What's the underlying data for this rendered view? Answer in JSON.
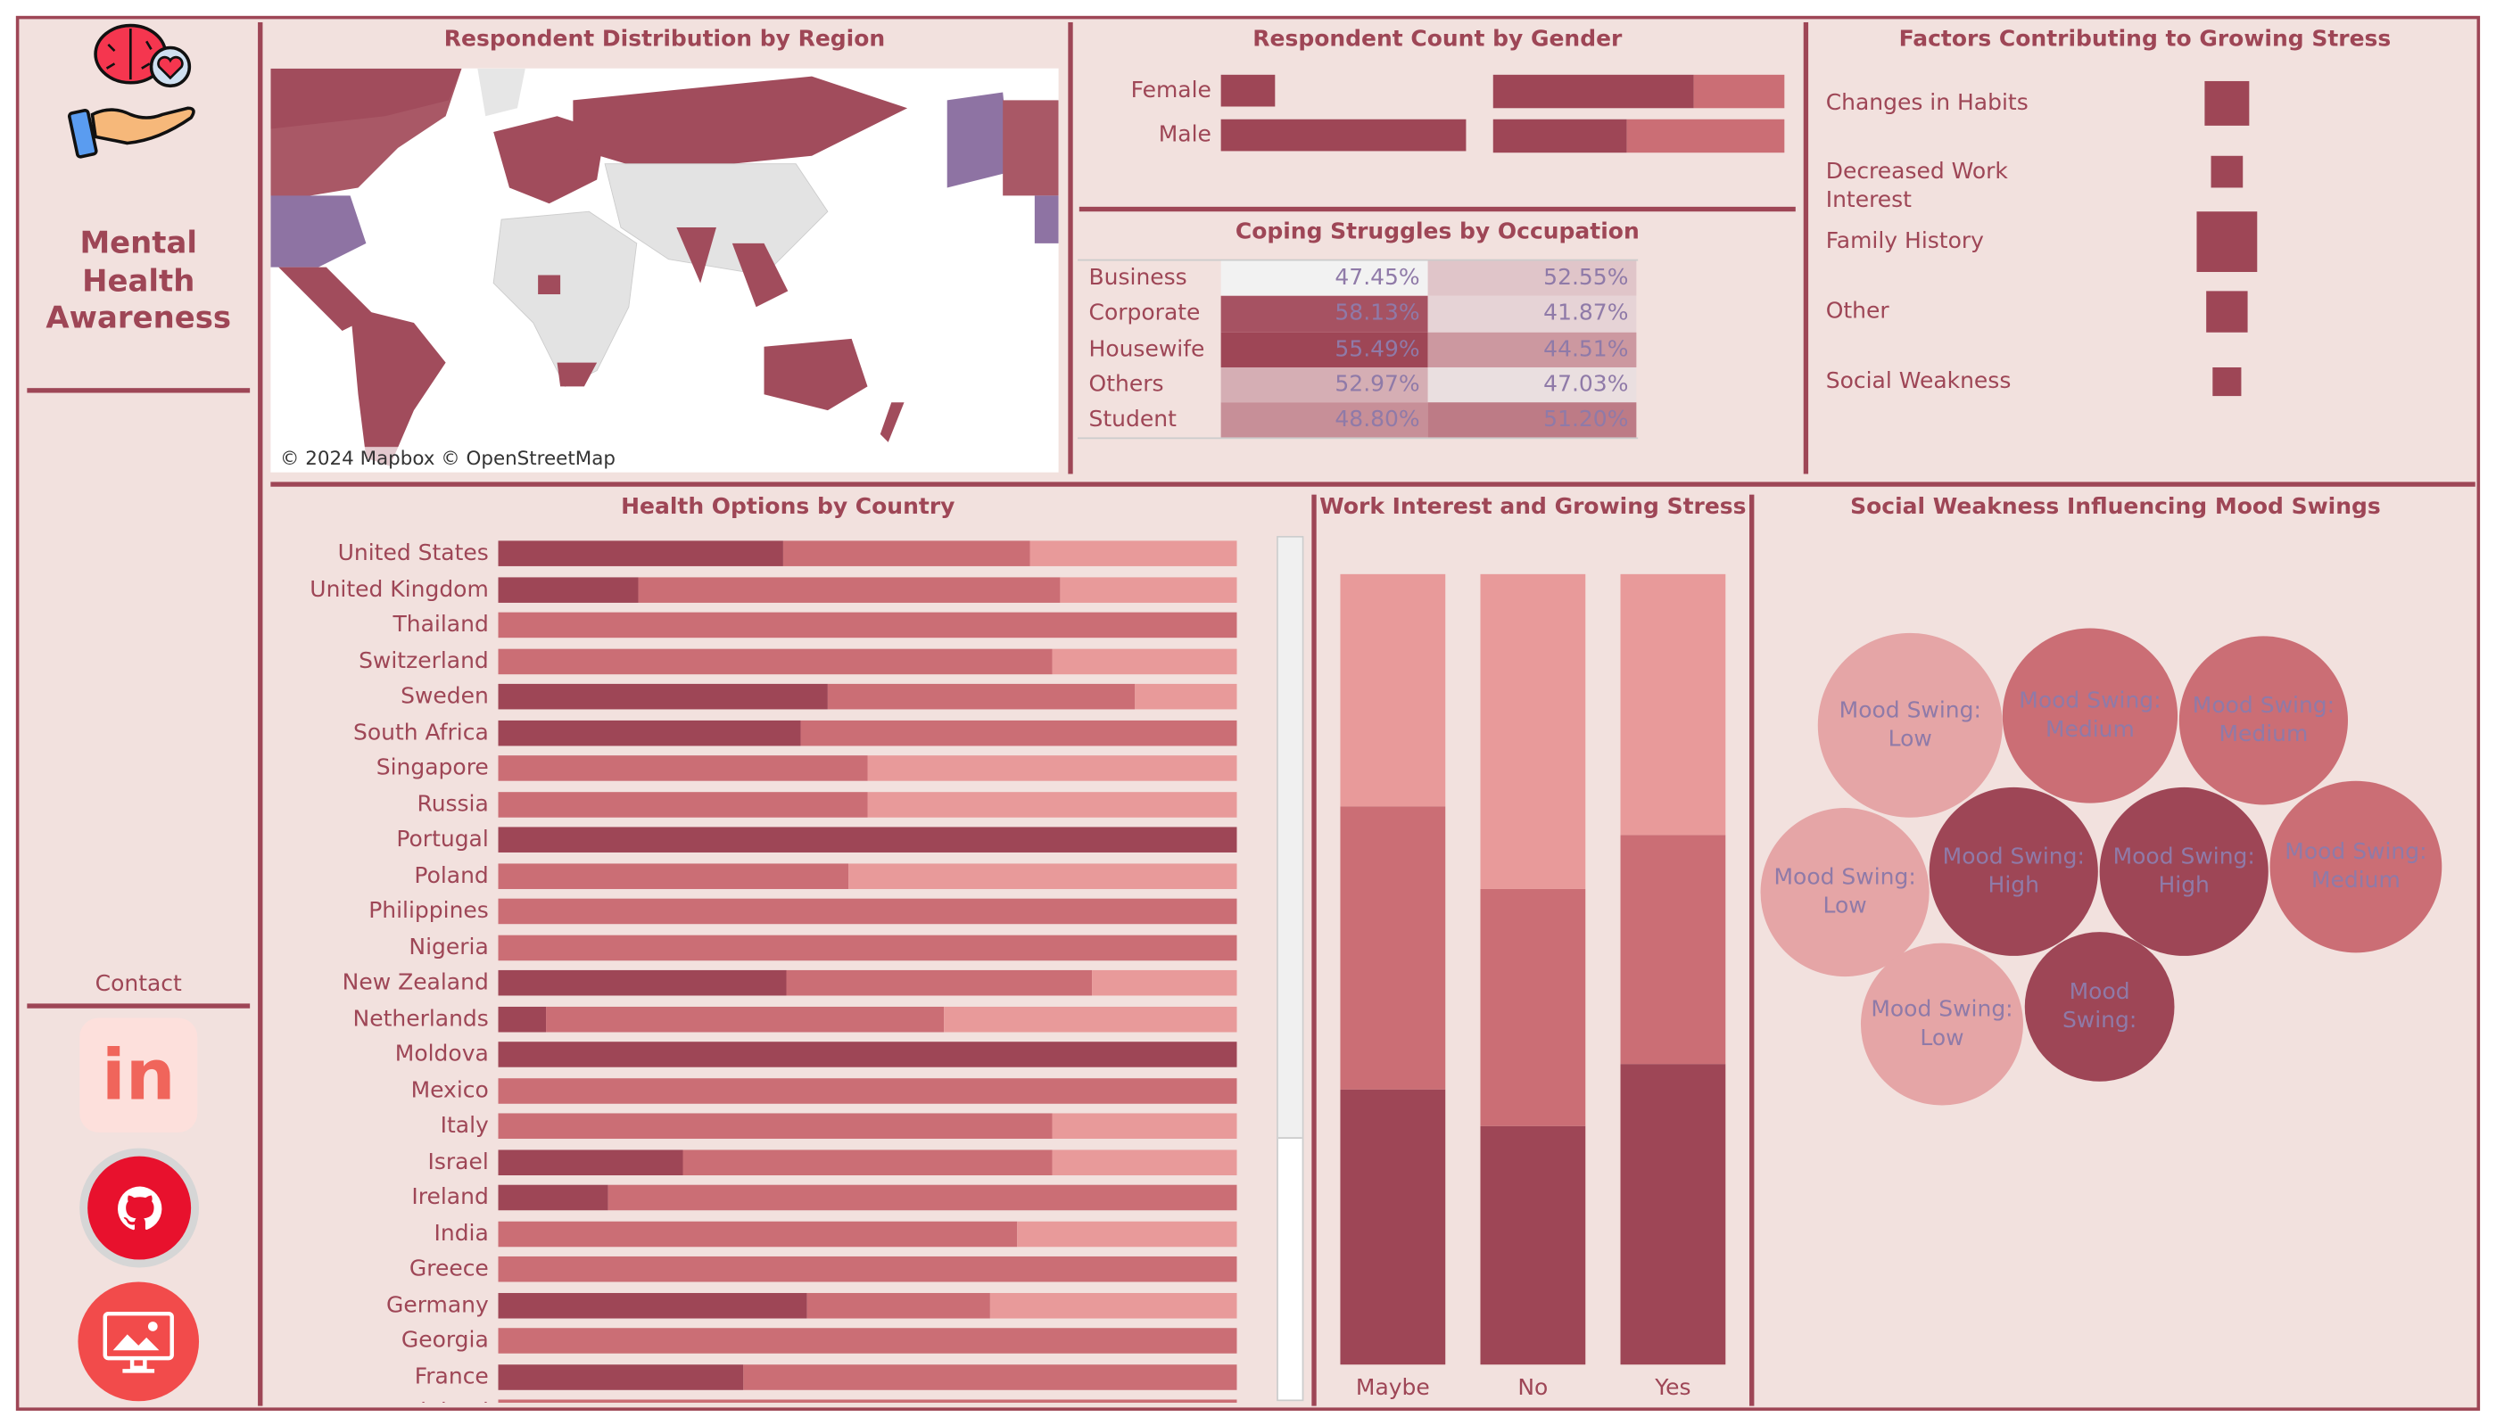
{
  "sidebar": {
    "title": "Mental Health Awareness",
    "contact_label": "Contact",
    "icons": [
      "brain-heart-hand-logo",
      "linkedin-icon",
      "github-icon",
      "presentation-icon"
    ]
  },
  "colors": {
    "dark": "#9e4656",
    "medium": "#cb6e75",
    "light": "#e89a9a",
    "background": "#f2e1de",
    "label_text": "#8f7aa8"
  },
  "map": {
    "title": "Respondent Distribution by Region",
    "attribution": "© 2024 Mapbox © OpenStreetMap"
  },
  "gender": {
    "title": "Respondent Count by Gender",
    "rows": [
      {
        "label": "Female",
        "count_share": 0.18,
        "split": [
          0.69,
          0.31
        ]
      },
      {
        "label": "Male",
        "count_share": 0.82,
        "split": [
          0.46,
          0.54
        ]
      }
    ]
  },
  "coping": {
    "title": "Coping Struggles by Occupation",
    "rows": [
      {
        "label": "Business",
        "a": "47.45%",
        "b": "52.55%",
        "ca": "#f2f2f2",
        "cb": "#e0c5c9"
      },
      {
        "label": "Corporate",
        "a": "58.13%",
        "b": "41.87%",
        "ca": "#a65262",
        "cb": "#e6d3d6"
      },
      {
        "label": "Housewife",
        "a": "55.49%",
        "b": "44.51%",
        "ca": "#9e4656",
        "cb": "#cc98a0"
      },
      {
        "label": "Others",
        "a": "52.97%",
        "b": "47.03%",
        "ca": "#d5aeb4",
        "cb": "#eadfe0"
      },
      {
        "label": "Student",
        "a": "48.80%",
        "b": "51.20%",
        "ca": "#c78f98",
        "cb": "#bd7b86"
      }
    ]
  },
  "factors": {
    "title": "Factors Contributing to Growing Stress",
    "items": [
      {
        "label": "Changes in Habits",
        "size": 0.74
      },
      {
        "label": "Decreased Work Interest",
        "size": 0.53
      },
      {
        "label": "Family History",
        "size": 1.0
      },
      {
        "label": "Other",
        "size": 0.71
      },
      {
        "label": "Social Weakness",
        "size": 0.47
      }
    ]
  },
  "health": {
    "title": "Health Options by Country",
    "rows": [
      {
        "country": "United States",
        "v": [
          0.386,
          0.334,
          0.28
        ]
      },
      {
        "country": "United Kingdom",
        "v": [
          0.19,
          0.57,
          0.24
        ]
      },
      {
        "country": "Thailand",
        "v": [
          0,
          1,
          0
        ]
      },
      {
        "country": "Switzerland",
        "v": [
          0,
          0.75,
          0.25
        ]
      },
      {
        "country": "Sweden",
        "v": [
          0.446,
          0.416,
          0.138
        ]
      },
      {
        "country": "South Africa",
        "v": [
          0.41,
          0.59,
          0
        ]
      },
      {
        "country": "Singapore",
        "v": [
          0,
          0.5,
          0.5
        ]
      },
      {
        "country": "Russia",
        "v": [
          0,
          0.5,
          0.5
        ]
      },
      {
        "country": "Portugal",
        "v": [
          1,
          0,
          0
        ]
      },
      {
        "country": "Poland",
        "v": [
          0,
          0.474,
          0.526
        ]
      },
      {
        "country": "Philippines",
        "v": [
          0,
          1,
          0
        ]
      },
      {
        "country": "Nigeria",
        "v": [
          0,
          1,
          0
        ]
      },
      {
        "country": "New Zealand",
        "v": [
          0.39,
          0.414,
          0.196
        ]
      },
      {
        "country": "Netherlands",
        "v": [
          0.065,
          0.539,
          0.396
        ]
      },
      {
        "country": "Moldova",
        "v": [
          1,
          0,
          0
        ]
      },
      {
        "country": "Mexico",
        "v": [
          0,
          1,
          0
        ]
      },
      {
        "country": "Italy",
        "v": [
          0,
          0.75,
          0.25
        ]
      },
      {
        "country": "Israel",
        "v": [
          0.25,
          0.5,
          0.25
        ]
      },
      {
        "country": "Ireland",
        "v": [
          0.149,
          0.851,
          0
        ]
      },
      {
        "country": "India",
        "v": [
          0,
          0.703,
          0.297
        ]
      },
      {
        "country": "Greece",
        "v": [
          0,
          1,
          0
        ]
      },
      {
        "country": "Germany",
        "v": [
          0.418,
          0.248,
          0.334
        ]
      },
      {
        "country": "Georgia",
        "v": [
          0,
          1,
          0
        ]
      },
      {
        "country": "France",
        "v": [
          0.332,
          0.668,
          0
        ]
      },
      {
        "country": "Finland",
        "v": [
          0,
          1,
          0
        ]
      }
    ]
  },
  "work": {
    "title": "Work Interest and Growing Stress",
    "bars": [
      {
        "label": "Maybe",
        "v": [
          0.348,
          0.358,
          0.294
        ]
      },
      {
        "label": "No",
        "v": [
          0.302,
          0.3,
          0.398
        ]
      },
      {
        "label": "Yes",
        "v": [
          0.38,
          0.29,
          0.33
        ]
      }
    ]
  },
  "mood": {
    "title": "Social Weakness Influencing Mood Swings",
    "bubbles": [
      {
        "text": "Mood Swing: Low",
        "level": "light"
      },
      {
        "text": "Mood Swing: Medium",
        "level": "medium"
      },
      {
        "text": "Mood Swing: Medium",
        "level": "medium"
      },
      {
        "text": "Mood Swing: Low",
        "level": "light"
      },
      {
        "text": "Mood Swing: High",
        "level": "dark"
      },
      {
        "text": "Mood Swing: High",
        "level": "dark"
      },
      {
        "text": "Mood Swing: Medium",
        "level": "medium"
      },
      {
        "text": "Mood Swing: Low",
        "level": "light"
      },
      {
        "text": "Mood Swing:",
        "level": "dark"
      }
    ]
  }
}
